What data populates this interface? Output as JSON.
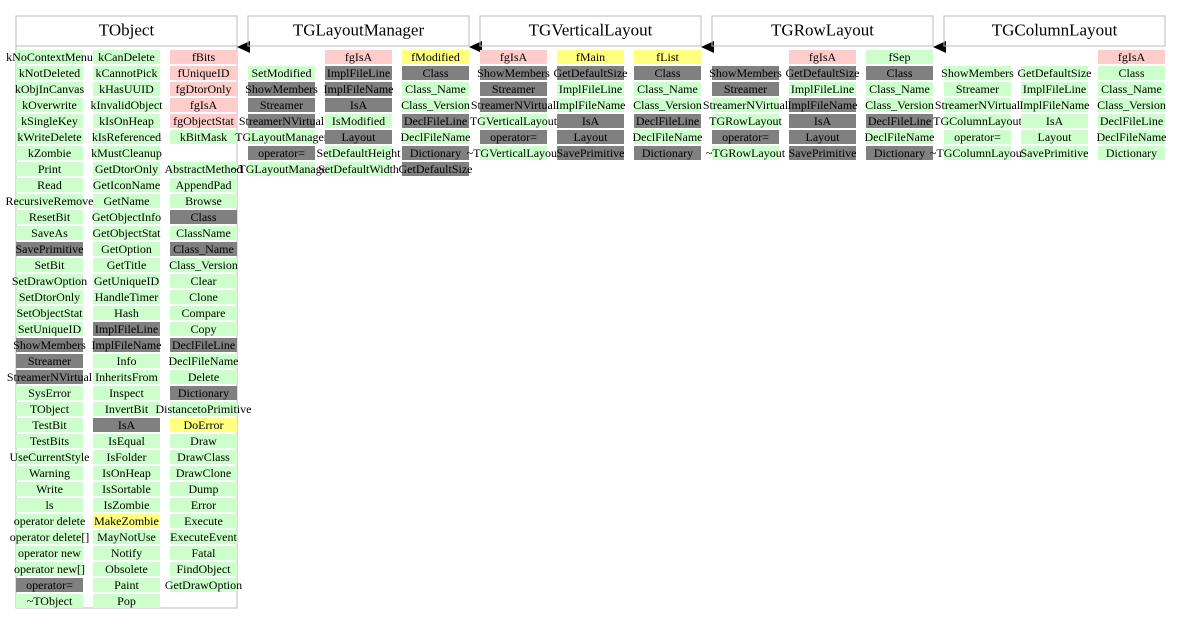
{
  "classes": [
    {
      "name": "TObject",
      "columns": [
        [
          {
            "text": "kNoContextMenu",
            "color": "#ccffcc"
          },
          {
            "text": "kNotDeleted",
            "color": "#ccffcc"
          },
          {
            "text": "kObjInCanvas",
            "color": "#ccffcc"
          },
          {
            "text": "kOverwrite",
            "color": "#ccffcc"
          },
          {
            "text": "kSingleKey",
            "color": "#ccffcc"
          },
          {
            "text": "kWriteDelete",
            "color": "#ccffcc"
          },
          {
            "text": "kZombie",
            "color": "#ccffcc"
          },
          {
            "text": "Print",
            "color": "#ccffcc"
          },
          {
            "text": "Read",
            "color": "#ccffcc"
          },
          {
            "text": "RecursiveRemove",
            "color": "#ccffcc"
          },
          {
            "text": "ResetBit",
            "color": "#ccffcc"
          },
          {
            "text": "SaveAs",
            "color": "#ccffcc"
          },
          {
            "text": "SavePrimitive",
            "color": "#808080"
          },
          {
            "text": "SetBit",
            "color": "#ccffcc"
          },
          {
            "text": "SetDrawOption",
            "color": "#ccffcc"
          },
          {
            "text": "SetDtorOnly",
            "color": "#ccffcc"
          },
          {
            "text": "SetObjectStat",
            "color": "#ccffcc"
          },
          {
            "text": "SetUniqueID",
            "color": "#ccffcc"
          },
          {
            "text": "ShowMembers",
            "color": "#808080"
          },
          {
            "text": "Streamer",
            "color": "#808080"
          },
          {
            "text": "StreamerNVirtual",
            "color": "#808080"
          },
          {
            "text": "SysError",
            "color": "#ccffcc"
          },
          {
            "text": "TObject",
            "color": "#ccffcc"
          },
          {
            "text": "TestBit",
            "color": "#ccffcc"
          },
          {
            "text": "TestBits",
            "color": "#ccffcc"
          },
          {
            "text": "UseCurrentStyle",
            "color": "#ccffcc"
          },
          {
            "text": "Warning",
            "color": "#ccffcc"
          },
          {
            "text": "Write",
            "color": "#ccffcc"
          },
          {
            "text": "ls",
            "color": "#ccffcc"
          },
          {
            "text": "operator delete",
            "color": "#ccffcc"
          },
          {
            "text": "operator delete[]",
            "color": "#ccffcc"
          },
          {
            "text": "operator new",
            "color": "#ccffcc"
          },
          {
            "text": "operator new[]",
            "color": "#ccffcc"
          },
          {
            "text": "operator=",
            "color": "#808080"
          },
          {
            "text": "~TObject",
            "color": "#ccffcc"
          }
        ],
        [
          {
            "text": "kCanDelete",
            "color": "#ccffcc"
          },
          {
            "text": "kCannotPick",
            "color": "#ccffcc"
          },
          {
            "text": "kHasUUID",
            "color": "#ccffcc"
          },
          {
            "text": "kInvalidObject",
            "color": "#ccffcc"
          },
          {
            "text": "kIsOnHeap",
            "color": "#ccffcc"
          },
          {
            "text": "kIsReferenced",
            "color": "#ccffcc"
          },
          {
            "text": "kMustCleanup",
            "color": "#ccffcc"
          },
          {
            "text": "GetDtorOnly",
            "color": "#ccffcc"
          },
          {
            "text": "GetIconName",
            "color": "#ccffcc"
          },
          {
            "text": "GetName",
            "color": "#ccffcc"
          },
          {
            "text": "GetObjectInfo",
            "color": "#ccffcc"
          },
          {
            "text": "GetObjectStat",
            "color": "#ccffcc"
          },
          {
            "text": "GetOption",
            "color": "#ccffcc"
          },
          {
            "text": "GetTitle",
            "color": "#ccffcc"
          },
          {
            "text": "GetUniqueID",
            "color": "#ccffcc"
          },
          {
            "text": "HandleTimer",
            "color": "#ccffcc"
          },
          {
            "text": "Hash",
            "color": "#ccffcc"
          },
          {
            "text": "ImplFileLine",
            "color": "#808080"
          },
          {
            "text": "ImplFileName",
            "color": "#808080"
          },
          {
            "text": "Info",
            "color": "#ccffcc"
          },
          {
            "text": "InheritsFrom",
            "color": "#ccffcc"
          },
          {
            "text": "Inspect",
            "color": "#ccffcc"
          },
          {
            "text": "InvertBit",
            "color": "#ccffcc"
          },
          {
            "text": "IsA",
            "color": "#808080"
          },
          {
            "text": "IsEqual",
            "color": "#ccffcc"
          },
          {
            "text": "IsFolder",
            "color": "#ccffcc"
          },
          {
            "text": "IsOnHeap",
            "color": "#ccffcc"
          },
          {
            "text": "IsSortable",
            "color": "#ccffcc"
          },
          {
            "text": "IsZombie",
            "color": "#ccffcc"
          },
          {
            "text": "MakeZombie",
            "color": "#ffff80"
          },
          {
            "text": "MayNotUse",
            "color": "#ccffcc"
          },
          {
            "text": "Notify",
            "color": "#ccffcc"
          },
          {
            "text": "Obsolete",
            "color": "#ccffcc"
          },
          {
            "text": "Paint",
            "color": "#ccffcc"
          },
          {
            "text": "Pop",
            "color": "#ccffcc"
          }
        ],
        [
          {
            "text": "fBits",
            "color": "#ffcccc"
          },
          {
            "text": "fUniqueID",
            "color": "#ffcccc"
          },
          {
            "text": "fgDtorOnly",
            "color": "#ffcccc"
          },
          {
            "text": "fgIsA",
            "color": "#ffcccc"
          },
          {
            "text": "fgObjectStat",
            "color": "#ffcccc"
          },
          {
            "text": "kBitMask",
            "color": "#ccffcc"
          },
          null,
          {
            "text": "AbstractMethod",
            "color": "#ccffcc"
          },
          {
            "text": "AppendPad",
            "color": "#ccffcc"
          },
          {
            "text": "Browse",
            "color": "#ccffcc"
          },
          {
            "text": "Class",
            "color": "#808080"
          },
          {
            "text": "ClassName",
            "color": "#ccffcc"
          },
          {
            "text": "Class_Name",
            "color": "#808080"
          },
          {
            "text": "Class_Version",
            "color": "#ccffcc"
          },
          {
            "text": "Clear",
            "color": "#ccffcc"
          },
          {
            "text": "Clone",
            "color": "#ccffcc"
          },
          {
            "text": "Compare",
            "color": "#ccffcc"
          },
          {
            "text": "Copy",
            "color": "#ccffcc"
          },
          {
            "text": "DeclFileLine",
            "color": "#808080"
          },
          {
            "text": "DeclFileName",
            "color": "#ccffcc"
          },
          {
            "text": "Delete",
            "color": "#ccffcc"
          },
          {
            "text": "Dictionary",
            "color": "#808080"
          },
          {
            "text": "DistancetoPrimitive",
            "color": "#ccffcc"
          },
          {
            "text": "DoError",
            "color": "#ffff80"
          },
          {
            "text": "Draw",
            "color": "#ccffcc"
          },
          {
            "text": "DrawClass",
            "color": "#ccffcc"
          },
          {
            "text": "DrawClone",
            "color": "#ccffcc"
          },
          {
            "text": "Dump",
            "color": "#ccffcc"
          },
          {
            "text": "Error",
            "color": "#ccffcc"
          },
          {
            "text": "Execute",
            "color": "#ccffcc"
          },
          {
            "text": "ExecuteEvent",
            "color": "#ccffcc"
          },
          {
            "text": "Fatal",
            "color": "#ccffcc"
          },
          {
            "text": "FindObject",
            "color": "#ccffcc"
          },
          {
            "text": "GetDrawOption",
            "color": "#ccffcc"
          }
        ]
      ]
    },
    {
      "name": "TGLayoutManager",
      "columns": [
        [
          null,
          {
            "text": "SetModified",
            "color": "#ccffcc"
          },
          {
            "text": "ShowMembers",
            "color": "#808080"
          },
          {
            "text": "Streamer",
            "color": "#808080"
          },
          {
            "text": "StreamerNVirtual",
            "color": "#808080"
          },
          {
            "text": "TGLayoutManager",
            "color": "#ccffcc"
          },
          {
            "text": "operator=",
            "color": "#808080"
          },
          {
            "text": "~TGLayoutManager",
            "color": "#ccffcc"
          }
        ],
        [
          {
            "text": "fgIsA",
            "color": "#ffcccc"
          },
          {
            "text": "ImplFileLine",
            "color": "#808080"
          },
          {
            "text": "ImplFileName",
            "color": "#808080"
          },
          {
            "text": "IsA",
            "color": "#808080"
          },
          {
            "text": "IsModified",
            "color": "#ccffcc"
          },
          {
            "text": "Layout",
            "color": "#808080"
          },
          {
            "text": "SetDefaultHeight",
            "color": "#ccffcc"
          },
          {
            "text": "SetDefaultWidth",
            "color": "#ccffcc"
          }
        ],
        [
          {
            "text": "fModified",
            "color": "#ffff80"
          },
          {
            "text": "Class",
            "color": "#808080"
          },
          {
            "text": "Class_Name",
            "color": "#ccffcc"
          },
          {
            "text": "Class_Version",
            "color": "#ccffcc"
          },
          {
            "text": "DeclFileLine",
            "color": "#808080"
          },
          {
            "text": "DeclFileName",
            "color": "#ccffcc"
          },
          {
            "text": "Dictionary",
            "color": "#808080"
          },
          {
            "text": "GetDefaultSize",
            "color": "#808080"
          }
        ]
      ]
    },
    {
      "name": "TGVerticalLayout",
      "columns": [
        [
          {
            "text": "fgIsA",
            "color": "#ffcccc"
          },
          {
            "text": "ShowMembers",
            "color": "#808080"
          },
          {
            "text": "Streamer",
            "color": "#808080"
          },
          {
            "text": "StreamerNVirtual",
            "color": "#808080"
          },
          {
            "text": "TGVerticalLayout",
            "color": "#ccffcc"
          },
          {
            "text": "operator=",
            "color": "#808080"
          },
          {
            "text": "~TGVerticalLayout",
            "color": "#ccffcc"
          }
        ],
        [
          {
            "text": "fMain",
            "color": "#ffff80"
          },
          {
            "text": "GetDefaultSize",
            "color": "#808080"
          },
          {
            "text": "ImplFileLine",
            "color": "#ccffcc"
          },
          {
            "text": "ImplFileName",
            "color": "#ccffcc"
          },
          {
            "text": "IsA",
            "color": "#808080"
          },
          {
            "text": "Layout",
            "color": "#808080"
          },
          {
            "text": "SavePrimitive",
            "color": "#808080"
          }
        ],
        [
          {
            "text": "fList",
            "color": "#ffff80"
          },
          {
            "text": "Class",
            "color": "#808080"
          },
          {
            "text": "Class_Name",
            "color": "#ccffcc"
          },
          {
            "text": "Class_Version",
            "color": "#ccffcc"
          },
          {
            "text": "DeclFileLine",
            "color": "#808080"
          },
          {
            "text": "DeclFileName",
            "color": "#ccffcc"
          },
          {
            "text": "Dictionary",
            "color": "#808080"
          }
        ]
      ]
    },
    {
      "name": "TGRowLayout",
      "columns": [
        [
          null,
          {
            "text": "ShowMembers",
            "color": "#808080"
          },
          {
            "text": "Streamer",
            "color": "#808080"
          },
          {
            "text": "StreamerNVirtual",
            "color": "#ccffcc"
          },
          {
            "text": "TGRowLayout",
            "color": "#ccffcc"
          },
          {
            "text": "operator=",
            "color": "#808080"
          },
          {
            "text": "~TGRowLayout",
            "color": "#ccffcc"
          }
        ],
        [
          {
            "text": "fgIsA",
            "color": "#ffcccc"
          },
          {
            "text": "GetDefaultSize",
            "color": "#808080"
          },
          {
            "text": "ImplFileLine",
            "color": "#ccffcc"
          },
          {
            "text": "ImplFileName",
            "color": "#808080"
          },
          {
            "text": "IsA",
            "color": "#808080"
          },
          {
            "text": "Layout",
            "color": "#808080"
          },
          {
            "text": "SavePrimitive",
            "color": "#808080"
          }
        ],
        [
          {
            "text": "fSep",
            "color": "#ccffcc"
          },
          {
            "text": "Class",
            "color": "#808080"
          },
          {
            "text": "Class_Name",
            "color": "#ccffcc"
          },
          {
            "text": "Class_Version",
            "color": "#ccffcc"
          },
          {
            "text": "DeclFileLine",
            "color": "#808080"
          },
          {
            "text": "DeclFileName",
            "color": "#ccffcc"
          },
          {
            "text": "Dictionary",
            "color": "#808080"
          }
        ]
      ]
    },
    {
      "name": "TGColumnLayout",
      "columns": [
        [
          null,
          {
            "text": "ShowMembers",
            "color": "#ccffcc"
          },
          {
            "text": "Streamer",
            "color": "#ccffcc"
          },
          {
            "text": "StreamerNVirtual",
            "color": "#ccffcc"
          },
          {
            "text": "TGColumnLayout",
            "color": "#ccffcc"
          },
          {
            "text": "operator=",
            "color": "#ccffcc"
          },
          {
            "text": "~TGColumnLayout",
            "color": "#ccffcc"
          }
        ],
        [
          null,
          {
            "text": "GetDefaultSize",
            "color": "#ccffcc"
          },
          {
            "text": "ImplFileLine",
            "color": "#ccffcc"
          },
          {
            "text": "ImplFileName",
            "color": "#ccffcc"
          },
          {
            "text": "IsA",
            "color": "#ccffcc"
          },
          {
            "text": "Layout",
            "color": "#ccffcc"
          },
          {
            "text": "SavePrimitive",
            "color": "#ccffcc"
          }
        ],
        [
          {
            "text": "fgIsA",
            "color": "#ffcccc"
          },
          {
            "text": "Class",
            "color": "#ccffcc"
          },
          {
            "text": "Class_Name",
            "color": "#ccffcc"
          },
          {
            "text": "Class_Version",
            "color": "#ccffcc"
          },
          {
            "text": "DeclFileLine",
            "color": "#ccffcc"
          },
          {
            "text": "DeclFileName",
            "color": "#ccffcc"
          },
          {
            "text": "Dictionary",
            "color": "#ccffcc"
          }
        ]
      ]
    }
  ]
}
